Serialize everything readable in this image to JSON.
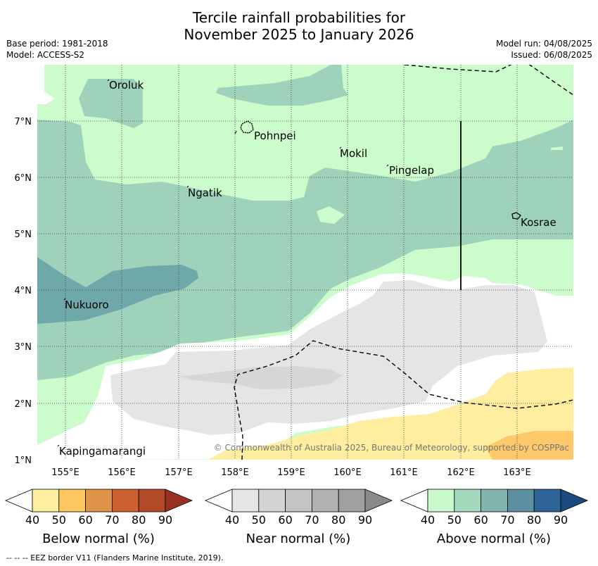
{
  "header": {
    "title_line1": "Tercile rainfall probabilities for",
    "title_line2": "November 2025 to January 2026",
    "base_period": "Base period: 1981-2018",
    "model": "Model: ACCESS-S2",
    "model_run": "Model run: 04/08/2025",
    "issued": "Issued: 06/08/2025"
  },
  "map": {
    "lat_labels": [
      "7°N",
      "6°N",
      "5°N",
      "4°N",
      "3°N",
      "2°N",
      "1°N"
    ],
    "lon_labels": [
      "155°E",
      "156°E",
      "157°E",
      "158°E",
      "159°E",
      "160°E",
      "161°E",
      "162°E",
      "163°E"
    ],
    "places": [
      "Oroluk",
      "Pohnpei",
      "Mokil",
      "Pingelap",
      "Ngatik",
      "Kosrae",
      "Nukuoro",
      "Kapingamarangi"
    ],
    "copyright": "© Commonwealth of Australia 2025, Bureau of Meteorology, supported by COSPPac",
    "colors": {
      "above_50": "#ccfccc",
      "above_60": "#9ed2bb",
      "above_70": "#6ea8a8",
      "near_50": "#e5e5e5",
      "near_60": "#d6d6d6",
      "below_50": "#ffeda0",
      "below_60": "#fec96a"
    }
  },
  "legends": {
    "below": {
      "label": "Below normal (%)",
      "ticks": [
        "40",
        "50",
        "60",
        "70",
        "80",
        "90"
      ],
      "colors": [
        "#ffffff",
        "#ffeda0",
        "#fec960",
        "#e09448",
        "#cc6030",
        "#b04a28",
        "#9a3020"
      ]
    },
    "near": {
      "label": "Near normal (%)",
      "ticks": [
        "40",
        "50",
        "60",
        "70",
        "80",
        "90"
      ],
      "colors": [
        "#ffffff",
        "#e5e5e5",
        "#d4d4d4",
        "#c4c4c4",
        "#b2b2b2",
        "#a0a0a0",
        "#8a8a8a"
      ]
    },
    "above": {
      "label": "Above normal (%)",
      "ticks": [
        "40",
        "50",
        "60",
        "70",
        "80",
        "90"
      ],
      "colors": [
        "#ffffff",
        "#c8facc",
        "#a2d8bc",
        "#80b4ac",
        "#5c90a0",
        "#2e6498",
        "#1a4a80"
      ]
    }
  },
  "footnote": "--  --  -- EEZ border V11 (Flanders Marine Institute, 2019)."
}
